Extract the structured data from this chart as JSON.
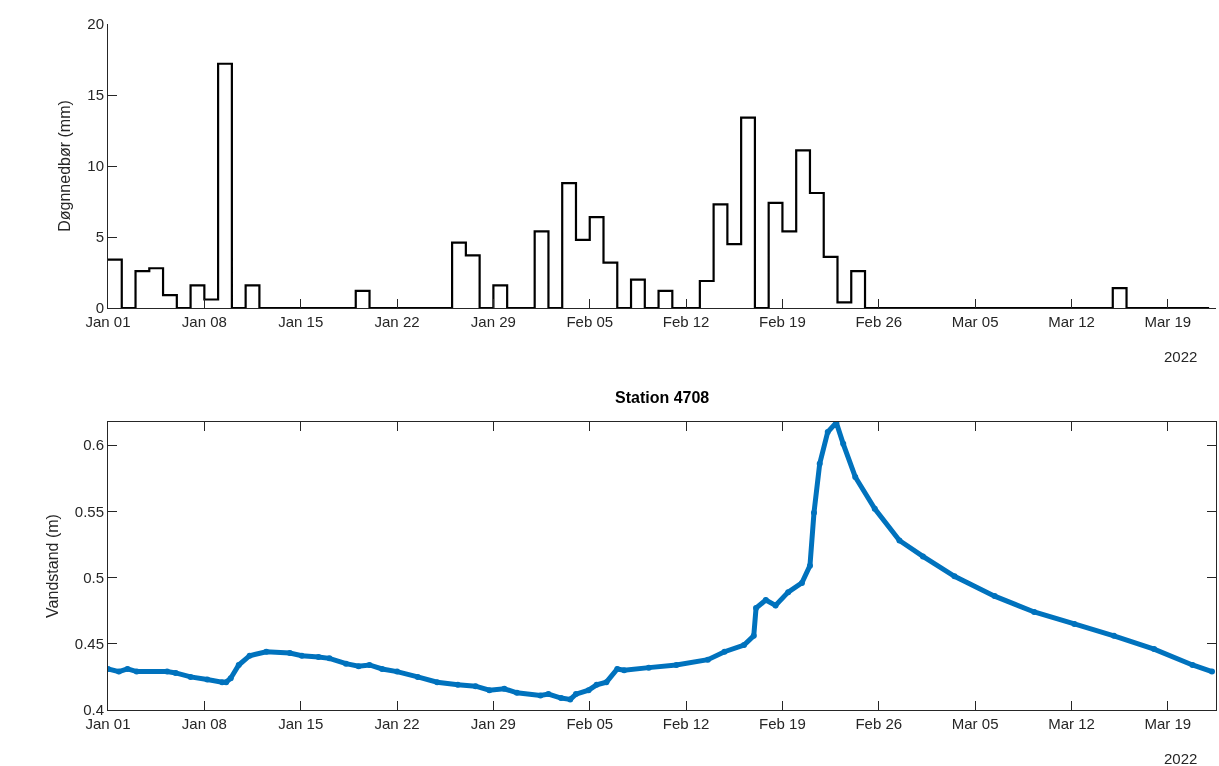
{
  "chart_data": [
    {
      "type": "step",
      "ylabel": "Døgnnedbør (mm)",
      "annotations": [
        "2022"
      ],
      "x": [
        "2022-01-01",
        "2022-01-02",
        "2022-01-03",
        "2022-01-04",
        "2022-01-05",
        "2022-01-06",
        "2022-01-07",
        "2022-01-08",
        "2022-01-09",
        "2022-01-10",
        "2022-01-11",
        "2022-01-12",
        "2022-01-13",
        "2022-01-14",
        "2022-01-15",
        "2022-01-16",
        "2022-01-17",
        "2022-01-18",
        "2022-01-19",
        "2022-01-20",
        "2022-01-21",
        "2022-01-22",
        "2022-01-23",
        "2022-01-24",
        "2022-01-25",
        "2022-01-26",
        "2022-01-27",
        "2022-01-28",
        "2022-01-29",
        "2022-01-30",
        "2022-01-31",
        "2022-02-01",
        "2022-02-02",
        "2022-02-03",
        "2022-02-04",
        "2022-02-05",
        "2022-02-06",
        "2022-02-07",
        "2022-02-08",
        "2022-02-09",
        "2022-02-10",
        "2022-02-11",
        "2022-02-12",
        "2022-02-13",
        "2022-02-14",
        "2022-02-15",
        "2022-02-16",
        "2022-02-17",
        "2022-02-18",
        "2022-02-19",
        "2022-02-20",
        "2022-02-21",
        "2022-02-22",
        "2022-02-23",
        "2022-02-24",
        "2022-02-25",
        "2022-02-26",
        "2022-02-27",
        "2022-02-28",
        "2022-03-01",
        "2022-03-02",
        "2022-03-03",
        "2022-03-04",
        "2022-03-05",
        "2022-03-06",
        "2022-03-07",
        "2022-03-08",
        "2022-03-09",
        "2022-03-10",
        "2022-03-11",
        "2022-03-12",
        "2022-03-13",
        "2022-03-14",
        "2022-03-15",
        "2022-03-16",
        "2022-03-17",
        "2022-03-18",
        "2022-03-19",
        "2022-03-20",
        "2022-03-21",
        "2022-03-22"
      ],
      "series": [
        {
          "color": "#000000",
          "values": [
            3.4,
            0,
            2.6,
            2.8,
            0.9,
            0,
            1.6,
            0.6,
            17.2,
            0,
            1.6,
            0,
            0,
            0,
            0,
            0,
            0,
            0,
            1.2,
            0,
            0,
            0,
            0,
            0,
            0,
            4.6,
            3.7,
            0,
            1.6,
            0,
            0,
            5.4,
            0,
            8.8,
            4.8,
            6.4,
            3.2,
            0,
            2.0,
            0,
            1.2,
            0,
            0,
            1.9,
            7.3,
            4.5,
            13.4,
            0,
            7.4,
            5.4,
            11.1,
            8.1,
            3.6,
            0.4,
            2.6,
            0,
            0,
            0,
            0,
            0,
            0,
            0,
            0,
            0,
            0,
            0,
            0,
            0,
            0,
            0,
            0,
            0,
            0,
            1.4,
            0,
            0,
            0,
            0,
            0,
            0,
            0
          ]
        }
      ],
      "xlim": [
        "2022-01-01",
        "2022-03-22T12:00"
      ],
      "xticks": [
        {
          "value": "2022-01-01",
          "label": "Jan 01"
        },
        {
          "value": "2022-01-08",
          "label": "Jan 08"
        },
        {
          "value": "2022-01-15",
          "label": "Jan 15"
        },
        {
          "value": "2022-01-22",
          "label": "Jan 22"
        },
        {
          "value": "2022-01-29",
          "label": "Jan 29"
        },
        {
          "value": "2022-02-05",
          "label": "Feb 05"
        },
        {
          "value": "2022-02-12",
          "label": "Feb 12"
        },
        {
          "value": "2022-02-19",
          "label": "Feb 19"
        },
        {
          "value": "2022-02-26",
          "label": "Feb 26"
        },
        {
          "value": "2022-03-05",
          "label": "Mar 05"
        },
        {
          "value": "2022-03-12",
          "label": "Mar 12"
        },
        {
          "value": "2022-03-19",
          "label": "Mar 19"
        }
      ],
      "ylim": [
        0,
        20
      ],
      "yticks": [
        0,
        5,
        10,
        15,
        20
      ],
      "line_style": "solid"
    },
    {
      "type": "line",
      "title": "Station 4708",
      "ylabel": "Vandstand (m)",
      "annotations": [
        "2022"
      ],
      "x": [
        "2022-01-01T00:00",
        "2022-01-01T19:00",
        "2022-01-02T10:00",
        "2022-01-03T02:00",
        "2022-01-05T07:00",
        "2022-01-05T22:00",
        "2022-01-07T00:00",
        "2022-01-08T05:00",
        "2022-01-09T07:00",
        "2022-01-09T14:00",
        "2022-01-09T22:00",
        "2022-01-10T12:00",
        "2022-01-11T07:00",
        "2022-01-12T12:00",
        "2022-01-14T05:00",
        "2022-01-15T02:00",
        "2022-01-16T07:00",
        "2022-01-17T02:00",
        "2022-01-18T07:00",
        "2022-01-19T05:00",
        "2022-01-20T00:00",
        "2022-01-20T22:00",
        "2022-01-22T00:00",
        "2022-01-23T12:00",
        "2022-01-24T22:00",
        "2022-01-26T10:00",
        "2022-01-27T17:00",
        "2022-01-28T17:00",
        "2022-01-29T19:00",
        "2022-01-30T17:00",
        "2022-02-01T10:00",
        "2022-02-02T00:00",
        "2022-02-02T22:00",
        "2022-02-03T14:00",
        "2022-02-04T00:00",
        "2022-02-04T22:00",
        "2022-02-05T12:00",
        "2022-02-06T05:00",
        "2022-02-07T00:00",
        "2022-02-07T12:00",
        "2022-02-09T07:00",
        "2022-02-11T07:00",
        "2022-02-13T14:00",
        "2022-02-14T19:00",
        "2022-02-16T05:00",
        "2022-02-16T22:00",
        "2022-02-17T02:00",
        "2022-02-17T19:00",
        "2022-02-18T12:00",
        "2022-02-19T10:00",
        "2022-02-20T10:00",
        "2022-02-21T00:00",
        "2022-02-21T07:00",
        "2022-02-21T17:00",
        "2022-02-22T07:00",
        "2022-02-22T22:00",
        "2022-02-23T10:00",
        "2022-02-24T07:00",
        "2022-02-25T17:00",
        "2022-02-27T12:00",
        "2022-03-01T05:00",
        "2022-03-03T12:00",
        "2022-03-06T10:00",
        "2022-03-09T07:00",
        "2022-03-12T05:00",
        "2022-03-15T02:00",
        "2022-03-18T00:00",
        "2022-03-20T19:00",
        "2022-03-22T05:00"
      ],
      "series": [
        {
          "color": "#0072bd",
          "values": [
            0.431,
            0.429,
            0.431,
            0.429,
            0.429,
            0.428,
            0.425,
            0.423,
            0.421,
            0.421,
            0.424,
            0.434,
            0.441,
            0.444,
            0.443,
            0.441,
            0.44,
            0.439,
            0.435,
            0.433,
            0.434,
            0.431,
            0.429,
            0.425,
            0.421,
            0.419,
            0.418,
            0.415,
            0.416,
            0.413,
            0.411,
            0.412,
            0.409,
            0.408,
            0.412,
            0.415,
            0.419,
            0.421,
            0.431,
            0.43,
            0.432,
            0.434,
            0.438,
            0.444,
            0.449,
            0.456,
            0.477,
            0.483,
            0.479,
            0.489,
            0.496,
            0.509,
            0.549,
            0.586,
            0.61,
            0.617,
            0.601,
            0.576,
            0.552,
            0.528,
            0.516,
            0.501,
            0.486,
            0.474,
            0.465,
            0.456,
            0.446,
            0.434,
            0.429
          ]
        }
      ],
      "xlim": [
        "2022-01-01",
        "2022-03-22T12:00"
      ],
      "xticks": [
        {
          "value": "2022-01-01",
          "label": "Jan 01"
        },
        {
          "value": "2022-01-08",
          "label": "Jan 08"
        },
        {
          "value": "2022-01-15",
          "label": "Jan 15"
        },
        {
          "value": "2022-01-22",
          "label": "Jan 22"
        },
        {
          "value": "2022-01-29",
          "label": "Jan 29"
        },
        {
          "value": "2022-02-05",
          "label": "Feb 05"
        },
        {
          "value": "2022-02-12",
          "label": "Feb 12"
        },
        {
          "value": "2022-02-19",
          "label": "Feb 19"
        },
        {
          "value": "2022-02-26",
          "label": "Feb 26"
        },
        {
          "value": "2022-03-05",
          "label": "Mar 05"
        },
        {
          "value": "2022-03-12",
          "label": "Mar 12"
        },
        {
          "value": "2022-03-19",
          "label": "Mar 19"
        }
      ],
      "ylim": [
        0.4,
        0.6175
      ],
      "yticks": [
        0.4,
        0.45,
        0.5,
        0.55,
        0.6
      ],
      "marker": "circle",
      "line_style": "solid"
    }
  ]
}
